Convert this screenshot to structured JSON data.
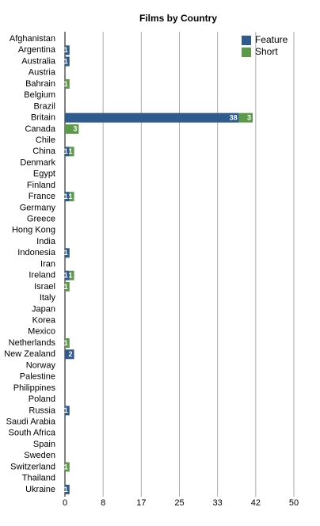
{
  "chart_data": {
    "type": "stacked-bar-horizontal",
    "title": "Films by Country",
    "categories": [
      "Afghanistan",
      "Argentina",
      "Australia",
      "Austria",
      "Bahrain",
      "Belgium",
      "Brazil",
      "Britain",
      "Canada",
      "Chile",
      "China",
      "Denmark",
      "Egypt",
      "Finland",
      "France",
      "Germany",
      "Greece",
      "Hong Kong",
      "India",
      "Indonesia",
      "Iran",
      "Ireland",
      "Israel",
      "Italy",
      "Japan",
      "Korea",
      "Mexico",
      "Netherlands",
      "New Zealand",
      "Norway",
      "Palestine",
      "Philippines",
      "Poland",
      "Russia",
      "Saudi Arabia",
      "South Africa",
      "Spain",
      "Sweden",
      "Switzerland",
      "Thailand",
      "Ukraine"
    ],
    "series": [
      {
        "name": "Feature",
        "color": "#2f5b8e",
        "values": [
          0,
          1,
          1,
          0,
          0,
          0,
          0,
          38,
          0,
          0,
          1,
          0,
          0,
          0,
          1,
          0,
          0,
          0,
          0,
          1,
          0,
          1,
          0,
          0,
          0,
          0,
          0,
          0,
          2,
          0,
          0,
          0,
          0,
          1,
          0,
          0,
          0,
          0,
          0,
          0,
          1
        ]
      },
      {
        "name": "Short",
        "color": "#5c9a4a",
        "values": [
          0,
          0,
          0,
          0,
          1,
          0,
          0,
          3,
          3,
          0,
          1,
          0,
          0,
          0,
          1,
          0,
          0,
          0,
          0,
          0,
          0,
          1,
          1,
          0,
          0,
          0,
          0,
          1,
          0,
          0,
          0,
          0,
          0,
          0,
          0,
          0,
          0,
          0,
          1,
          0,
          0
        ]
      }
    ],
    "xlim": [
      0,
      50
    ],
    "xticks": [
      0,
      {
        "value": 8.33,
        "label": "8"
      },
      {
        "value": 16.67,
        "label": "17"
      },
      25,
      {
        "value": 33.33,
        "label": "33"
      },
      {
        "value": 41.67,
        "label": "42"
      },
      50
    ],
    "grid": true,
    "legend": "top-right"
  }
}
